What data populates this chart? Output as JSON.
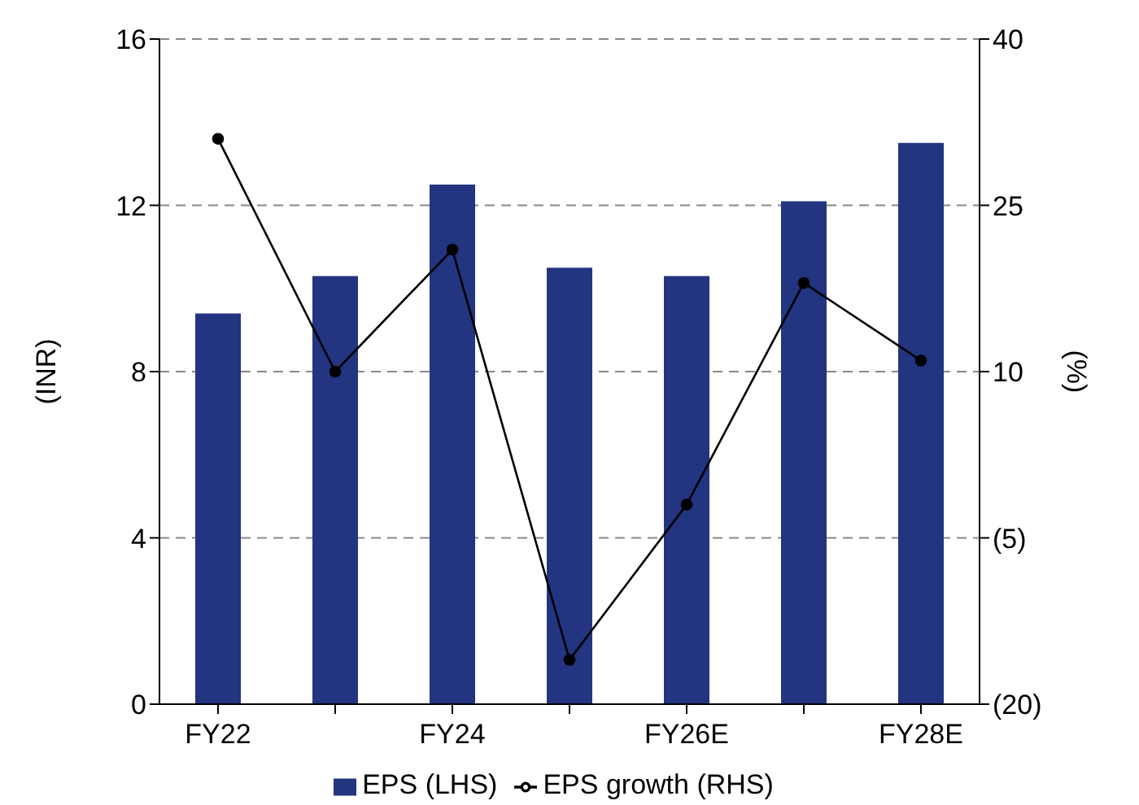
{
  "chart_data": {
    "type": "bar",
    "categories": [
      "FY22",
      null,
      "FY24",
      null,
      "FY26E",
      null,
      "FY28E"
    ],
    "ylabel": "(INR)",
    "y2label": "(%)",
    "series": [
      {
        "name": "EPS (LHS)",
        "color": "#233480",
        "values": [
          9.4,
          10.3,
          12.5,
          10.5,
          10.3,
          12.1,
          13.5
        ]
      },
      {
        "name": "EPS growth (RHS)",
        "type": "line",
        "axis": "y2",
        "color": "#000000",
        "marker": "circle",
        "values": [
          31,
          10,
          21,
          -16,
          -2,
          18,
          11
        ]
      }
    ],
    "ylim": [
      0,
      16
    ],
    "yticks": [
      0,
      4,
      8,
      12,
      16
    ],
    "y2lim": [
      -20,
      40
    ],
    "y2ticks": [
      {
        "value": -20,
        "label": "(20)"
      },
      {
        "value": -5,
        "label": "(5)"
      },
      10,
      25,
      40
    ],
    "grid": "y",
    "legend": "bottom"
  }
}
